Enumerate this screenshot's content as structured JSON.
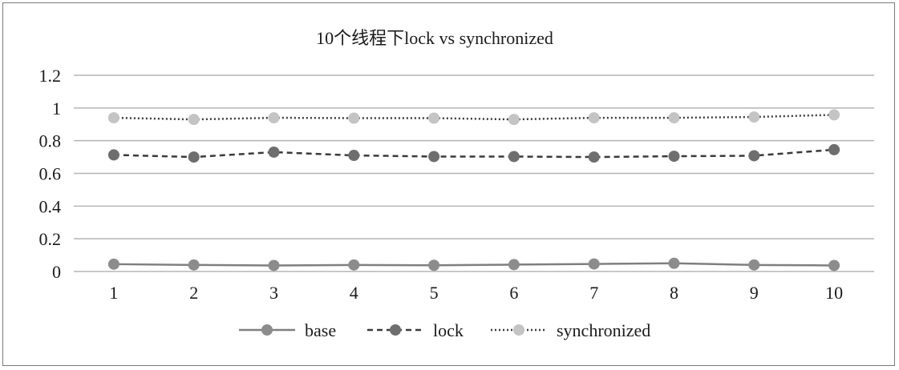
{
  "chart_data": {
    "type": "line",
    "title": "10个线程下lock vs synchronized",
    "xlabel": "",
    "ylabel": "",
    "categories": [
      "1",
      "2",
      "3",
      "4",
      "5",
      "6",
      "7",
      "8",
      "9",
      "10"
    ],
    "ylim": [
      0,
      1.2
    ],
    "yticks": [
      "0",
      "0.2",
      "0.4",
      "0.6",
      "0.8",
      "1",
      "1.2"
    ],
    "grid": true,
    "legend_position": "bottom",
    "series": [
      {
        "name": "base",
        "values": [
          0.045,
          0.04,
          0.037,
          0.04,
          0.038,
          0.042,
          0.046,
          0.05,
          0.04,
          0.037
        ],
        "color": "#7f7f7f",
        "dash": "solid",
        "marker_color": "#8c8c8c"
      },
      {
        "name": "lock",
        "values": [
          0.713,
          0.7,
          0.73,
          0.71,
          0.703,
          0.703,
          0.7,
          0.705,
          0.708,
          0.745
        ],
        "color": "#3a3a3a",
        "dash": "dashed",
        "marker_color": "#6e6e6e"
      },
      {
        "name": "synchronized",
        "values": [
          0.94,
          0.93,
          0.94,
          0.938,
          0.938,
          0.93,
          0.94,
          0.94,
          0.945,
          0.958
        ],
        "color": "#3a3a3a",
        "dash": "dotted",
        "marker_color": "#c4c4c4"
      }
    ]
  }
}
